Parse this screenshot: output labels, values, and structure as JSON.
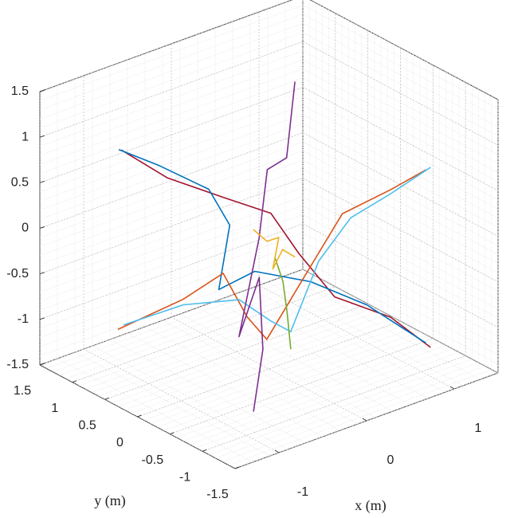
{
  "chart_data": {
    "type": "line3d",
    "xlabel": "x (m)",
    "ylabel": "y (m)",
    "xlim": [
      -1.5,
      1.5
    ],
    "ylim": [
      -1.5,
      1.5
    ],
    "zlim": [
      -1.5,
      1.5
    ],
    "xticks": [
      -1,
      0,
      1
    ],
    "yticks": [
      -1.5,
      -1,
      -0.5,
      0,
      0.5,
      1,
      1.5
    ],
    "zticks": [
      -1.5,
      -1,
      -0.5,
      0,
      0.5,
      1,
      1.5
    ],
    "grid": true,
    "minor_grid": true,
    "series": [
      {
        "color": "#a2142f",
        "x": [
          -0.6,
          -0.4,
          -0.2,
          0,
          0.2,
          0.4,
          0.6,
          0.73
        ],
        "y": [
          1.46,
          1.02,
          0.43,
          -0.03,
          -0.19,
          -0.47,
          -1.06,
          -1.5
        ],
        "z": [
          0.56,
          0.35,
          0.29,
          0.22,
          -0.23,
          -0.67,
          -0.74,
          -0.95
        ]
      },
      {
        "color": "#0072bd",
        "x": [
          -0.6,
          -0.45,
          -0.3,
          -0.15,
          0,
          0.15,
          0.35,
          0.55,
          0.72
        ],
        "y": [
          1.5,
          1.08,
          0.52,
          0.4,
          0.77,
          0.42,
          -0.17,
          -0.76,
          -1.44
        ],
        "z": [
          0.55,
          0.48,
          0.38,
          -0.02,
          -0.92,
          -0.64,
          -0.6,
          -0.7,
          -0.92
        ]
      },
      {
        "color": "#d95319",
        "x": [
          -1.1,
          -0.81,
          -0.53,
          -0.24,
          0.05,
          0.34,
          0.63,
          0.91,
          1.2
        ],
        "y": [
          0.84,
          0.23,
          -0.01,
          0.01,
          0.1,
          -0.12,
          -0.28,
          -0.64,
          -0.8
        ],
        "z": [
          -1.0,
          -0.54,
          -0.26,
          -0.85,
          -1.23,
          -0.52,
          0.09,
          0.39,
          0.57
        ]
      },
      {
        "color": "#4dbeee",
        "x": [
          -1.05,
          -0.76,
          -0.48,
          -0.19,
          0.1,
          0.39,
          0.68,
          0.96,
          1.25
        ],
        "y": [
          0.82,
          0.29,
          -0.19,
          -0.29,
          -0.2,
          -0.24,
          -0.34,
          -0.57,
          -0.8
        ],
        "z": [
          -0.96,
          -0.64,
          -0.5,
          -0.8,
          -1.05,
          -0.36,
          0.05,
          0.3,
          0.58
        ]
      },
      {
        "color": "#7e2f8e",
        "x": [
          0.4,
          0.35,
          0.3,
          0.2,
          0,
          -0.2,
          -0.5,
          -0.8
        ],
        "y": [
          0.14,
          0.2,
          0.43,
          0.42,
          0.46,
          -0.12,
          -0.58,
          -0.84
        ],
        "z": [
          1.46,
          0.62,
          0.42,
          -0.29,
          -1.32,
          -0.38,
          -0.89,
          -1.37
        ]
      },
      {
        "color": "#77ac30",
        "x": [
          0.2,
          0.1,
          0,
          -0.1
        ],
        "y": [
          0.18,
          -0.08,
          -0.28,
          -0.47
        ],
        "z": [
          -0.41,
          -0.54,
          -0.78,
          -1.07
        ]
      },
      {
        "color": "#edb120",
        "x": [
          0,
          0,
          0,
          0,
          0,
          0
        ],
        "y": [
          0.24,
          0.03,
          -0.15,
          -0.06,
          -0.21,
          -0.4
        ],
        "z": [
          -0.06,
          -0.11,
          0,
          -0.38,
          -0.11,
          -0.12
        ]
      }
    ]
  }
}
